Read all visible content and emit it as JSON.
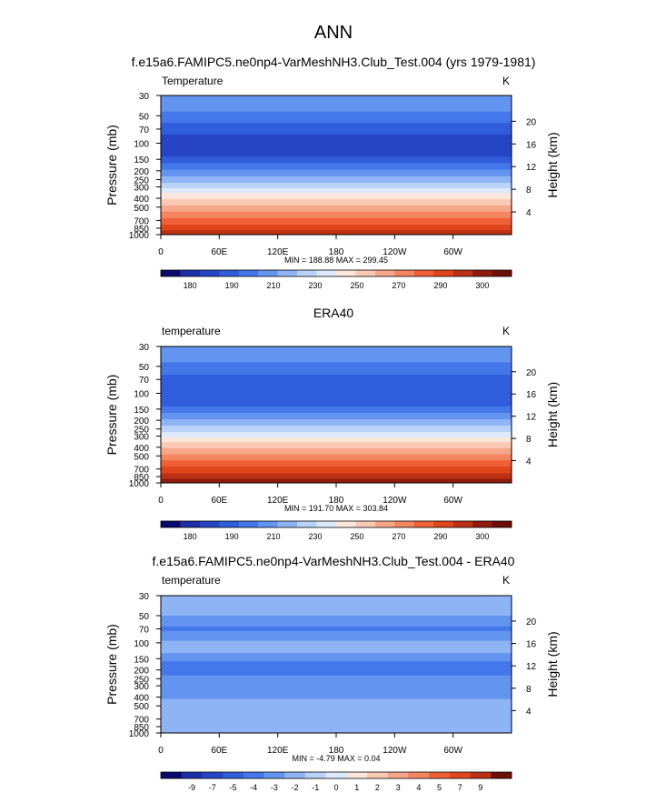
{
  "figure": {
    "title": "ANN"
  },
  "colors": {
    "temp_levels": [
      "#0a0a6e",
      "#1d2fa8",
      "#2545c5",
      "#2f5ddb",
      "#4478ea",
      "#6294f0",
      "#8fb4f5",
      "#b9d2f8",
      "#dde9fb",
      "#fbe6dc",
      "#f9c9b4",
      "#f6a78a",
      "#f38560",
      "#ef6036",
      "#e0451b",
      "#bc3114",
      "#8f1c0c",
      "#6e0e08"
    ],
    "diff_levels": [
      "#0a0a6e",
      "#1d2fa8",
      "#2545c5",
      "#2f5ddb",
      "#4478ea",
      "#6294f0",
      "#8fb4f5",
      "#b9d2f8",
      "#dde9fb",
      "#fbe6dc",
      "#f9c9b4",
      "#f6a78a",
      "#f38560",
      "#ef6036",
      "#e0451b",
      "#bc3114",
      "#6e0e08"
    ]
  },
  "chart_data": [
    {
      "type": "heatmap",
      "title": "f.e15a6.FAMIPC5.ne0np4-VarMeshNH3.Club_Test.004 (yrs 1979-1981)",
      "left_label": "Temperature",
      "units": "K",
      "ylabel": "Pressure (mb)",
      "ylabel2": "Height (km)",
      "x_ticks": [
        "0",
        "60E",
        "120E",
        "180",
        "120W",
        "60W"
      ],
      "y_ticks": [
        "30",
        "50",
        "70",
        "100",
        "150",
        "200",
        "250",
        "300",
        "400",
        "500",
        "700",
        "850",
        "1000"
      ],
      "y2_ticks": [
        "20",
        "16",
        "12",
        "8",
        "4"
      ],
      "stats": "MIN = 188.88  MAX = 299.45",
      "colorbar_labels": [
        "180",
        "190",
        "210",
        "230",
        "250",
        "270",
        "290",
        "300"
      ],
      "ylim": [
        30,
        1000
      ],
      "bands": [
        {
          "p_top": 30,
          "p_bottom": 45,
          "level": 5
        },
        {
          "p_top": 45,
          "p_bottom": 60,
          "level": 4
        },
        {
          "p_top": 60,
          "p_bottom": 80,
          "level": 3
        },
        {
          "p_top": 80,
          "p_bottom": 140,
          "level": 2
        },
        {
          "p_top": 140,
          "p_bottom": 165,
          "level": 3
        },
        {
          "p_top": 165,
          "p_bottom": 195,
          "level": 4
        },
        {
          "p_top": 195,
          "p_bottom": 230,
          "level": 5
        },
        {
          "p_top": 230,
          "p_bottom": 270,
          "level": 6
        },
        {
          "p_top": 270,
          "p_bottom": 310,
          "level": 7
        },
        {
          "p_top": 310,
          "p_bottom": 350,
          "level": 8
        },
        {
          "p_top": 350,
          "p_bottom": 410,
          "level": 9
        },
        {
          "p_top": 410,
          "p_bottom": 480,
          "level": 10
        },
        {
          "p_top": 480,
          "p_bottom": 560,
          "level": 11
        },
        {
          "p_top": 560,
          "p_bottom": 660,
          "level": 12
        },
        {
          "p_top": 660,
          "p_bottom": 780,
          "level": 13
        },
        {
          "p_top": 780,
          "p_bottom": 900,
          "level": 14
        },
        {
          "p_top": 900,
          "p_bottom": 1000,
          "level": 15
        }
      ]
    },
    {
      "type": "heatmap",
      "title": "ERA40",
      "left_label": "temperature",
      "units": "K",
      "ylabel": "Pressure (mb)",
      "ylabel2": "Height (km)",
      "x_ticks": [
        "0",
        "60E",
        "120E",
        "180",
        "120W",
        "60W"
      ],
      "y_ticks": [
        "30",
        "50",
        "70",
        "100",
        "150",
        "200",
        "250",
        "300",
        "400",
        "500",
        "700",
        "850",
        "1000"
      ],
      "y2_ticks": [
        "20",
        "16",
        "12",
        "8",
        "4"
      ],
      "stats": "MIN = 191.70  MAX = 303.84",
      "colorbar_labels": [
        "180",
        "190",
        "210",
        "230",
        "250",
        "270",
        "290",
        "300"
      ],
      "ylim": [
        30,
        1000
      ],
      "bands": [
        {
          "p_top": 30,
          "p_bottom": 45,
          "level": 5
        },
        {
          "p_top": 45,
          "p_bottom": 62,
          "level": 4
        },
        {
          "p_top": 62,
          "p_bottom": 140,
          "level": 3
        },
        {
          "p_top": 140,
          "p_bottom": 165,
          "level": 4
        },
        {
          "p_top": 165,
          "p_bottom": 195,
          "level": 5
        },
        {
          "p_top": 195,
          "p_bottom": 230,
          "level": 6
        },
        {
          "p_top": 230,
          "p_bottom": 270,
          "level": 7
        },
        {
          "p_top": 270,
          "p_bottom": 310,
          "level": 8
        },
        {
          "p_top": 310,
          "p_bottom": 350,
          "level": 9
        },
        {
          "p_top": 350,
          "p_bottom": 410,
          "level": 10
        },
        {
          "p_top": 410,
          "p_bottom": 480,
          "level": 11
        },
        {
          "p_top": 480,
          "p_bottom": 560,
          "level": 12
        },
        {
          "p_top": 560,
          "p_bottom": 660,
          "level": 13
        },
        {
          "p_top": 660,
          "p_bottom": 780,
          "level": 14
        },
        {
          "p_top": 780,
          "p_bottom": 900,
          "level": 15
        },
        {
          "p_top": 900,
          "p_bottom": 1000,
          "level": 16
        }
      ]
    },
    {
      "type": "heatmap",
      "title": "f.e15a6.FAMIPC5.ne0np4-VarMeshNH3.Club_Test.004 - ERA40",
      "left_label": "temperature",
      "units": "K",
      "ylabel": "Pressure (mb)",
      "ylabel2": "Height (km)",
      "x_ticks": [
        "0",
        "60E",
        "120E",
        "180",
        "120W",
        "60W"
      ],
      "y_ticks": [
        "30",
        "50",
        "70",
        "100",
        "150",
        "200",
        "250",
        "300",
        "400",
        "500",
        "700",
        "850",
        "1000"
      ],
      "y2_ticks": [
        "20",
        "16",
        "12",
        "8",
        "4"
      ],
      "stats": "MIN = -4.79  MAX =  0.04",
      "colorbar_labels": [
        "-9",
        "-7",
        "-5",
        "-4",
        "-3",
        "-2",
        "-1",
        "0",
        "1",
        "2",
        "3",
        "4",
        "5",
        "7",
        "9"
      ],
      "ylim": [
        30,
        1000
      ],
      "bands": [
        {
          "p_top": 30,
          "p_bottom": 50,
          "level": 6
        },
        {
          "p_top": 50,
          "p_bottom": 66,
          "level": 5
        },
        {
          "p_top": 66,
          "p_bottom": 74,
          "level": 4
        },
        {
          "p_top": 74,
          "p_bottom": 95,
          "level": 5
        },
        {
          "p_top": 95,
          "p_bottom": 130,
          "level": 6
        },
        {
          "p_top": 130,
          "p_bottom": 160,
          "level": 5
        },
        {
          "p_top": 160,
          "p_bottom": 230,
          "level": 4
        },
        {
          "p_top": 230,
          "p_bottom": 420,
          "level": 5
        },
        {
          "p_top": 420,
          "p_bottom": 1000,
          "level": 6
        }
      ]
    }
  ]
}
